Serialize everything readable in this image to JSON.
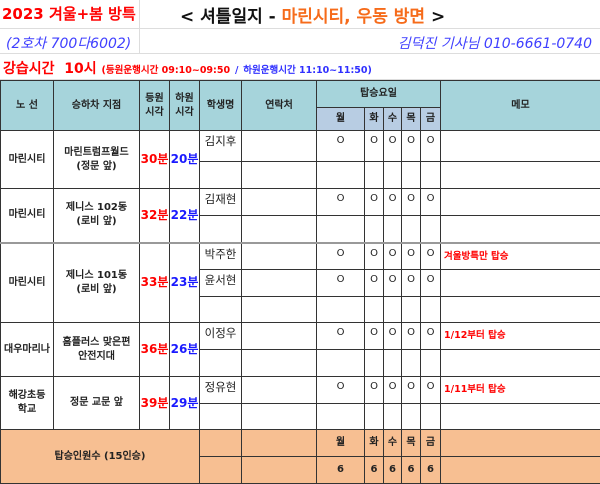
{
  "header": {
    "season": "2023 겨울+봄 방특",
    "title_prefix": "< 셔틀일지 -",
    "title_route": "마린시티, 우동 방면",
    "title_suffix": ">",
    "vehicle": "(2호차 700다6002)",
    "driver": "김덕진 기사님  010-6661-0740",
    "class_time_label": "강습시간",
    "class_time": "10시",
    "pickup_note": "(등원운행시간 09:10~09:50",
    "separator": "/",
    "dropoff_note": "하원운행시간 11:10~11:50)"
  },
  "table": {
    "headers": {
      "route": "노 선",
      "stop": "승하차 지점",
      "pickup": "등원\n시각",
      "dropoff": "하원\n시각",
      "student": "학생명",
      "contact": "연락처",
      "days_title": "탑승요일",
      "memo": "메모"
    },
    "days": [
      "월",
      "화",
      "수",
      "목",
      "금"
    ],
    "groups": [
      {
        "route": "마린시티",
        "stop": [
          "마린트럼프월드",
          "(정문 앞)"
        ],
        "pickup": "30분",
        "dropoff": "20분",
        "rows": [
          {
            "student": "김지후",
            "days": [
              "O",
              "O",
              "O",
              "O",
              "O"
            ],
            "memo": ""
          },
          {
            "student": "",
            "days": [
              "",
              "",
              "",
              "",
              ""
            ],
            "memo": ""
          }
        ]
      },
      {
        "route": "마린시티",
        "stop": [
          "제니스 102동",
          "(로비 앞)"
        ],
        "pickup": "32분",
        "dropoff": "22분",
        "rows": [
          {
            "student": "김재현",
            "days": [
              "O",
              "O",
              "O",
              "O",
              "O"
            ],
            "memo": ""
          },
          {
            "student": "",
            "days": [
              "",
              "",
              "",
              "",
              ""
            ],
            "memo": ""
          }
        ]
      },
      {
        "route": "마린시티",
        "stop": [
          "제니스 101동",
          "(로비 앞)"
        ],
        "pickup": "33분",
        "dropoff": "23분",
        "rows": [
          {
            "student": "박주한",
            "days": [
              "O",
              "O",
              "O",
              "O",
              "O"
            ],
            "memo": "겨울방특만 탑승"
          },
          {
            "student": "윤서현",
            "days": [
              "O",
              "O",
              "O",
              "O",
              "O"
            ],
            "memo": ""
          },
          {
            "student": "",
            "days": [
              "",
              "",
              "",
              "",
              ""
            ],
            "memo": ""
          }
        ]
      },
      {
        "route": "대우마리나",
        "stop": [
          "홈플러스 맞은편",
          "안전지대"
        ],
        "pickup": "36분",
        "dropoff": "26분",
        "rows": [
          {
            "student": "이정우",
            "days": [
              "O",
              "O",
              "O",
              "O",
              "O"
            ],
            "memo": "1/12부터 탑승"
          },
          {
            "student": "",
            "days": [
              "",
              "",
              "",
              "",
              ""
            ],
            "memo": ""
          }
        ]
      },
      {
        "route": "해강초등\n학교",
        "stop": [
          "정문 교문 앞",
          ""
        ],
        "pickup": "39분",
        "dropoff": "29분",
        "rows": [
          {
            "student": "정유현",
            "days": [
              "O",
              "O",
              "O",
              "O",
              "O"
            ],
            "memo": "1/11부터 탑승"
          },
          {
            "student": "",
            "days": [
              "",
              "",
              "",
              "",
              ""
            ],
            "memo": ""
          }
        ]
      }
    ],
    "footer": {
      "label": "탑승인원수 (15인승)",
      "days": [
        "월",
        "화",
        "수",
        "목",
        "금"
      ],
      "counts": [
        "6",
        "6",
        "6",
        "6",
        "6"
      ]
    }
  }
}
